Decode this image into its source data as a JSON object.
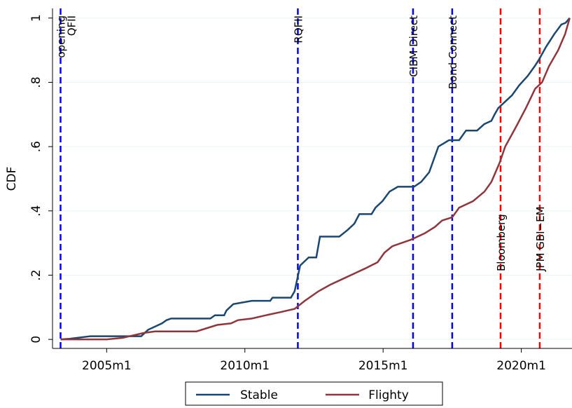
{
  "chart_data": {
    "type": "line",
    "y_label": "CDF",
    "xlim": [
      516.5,
      742
    ],
    "ylim": [
      -0.028,
      1.03
    ],
    "xticks": [
      {
        "value": 540,
        "label": "2005m1"
      },
      {
        "value": 600,
        "label": "2010m1"
      },
      {
        "value": 660,
        "label": "2015m1"
      },
      {
        "value": 720,
        "label": "2020m1"
      }
    ],
    "yticks": [
      0,
      {
        "value": 0.2,
        "label": ".2"
      },
      {
        "value": 0.4,
        "label": ".4"
      },
      {
        "value": 0.6,
        "label": ".6"
      },
      {
        "value": 0.8,
        "label": ".8"
      },
      1
    ],
    "grid": true,
    "legend": "bottom",
    "series": [
      {
        "name": "Stable",
        "color": "#1a476f",
        "x": [
          520,
          524,
          533,
          555,
          558,
          561,
          564,
          566,
          568,
          585,
          587,
          591,
          592,
          595,
          603,
          611,
          612,
          620,
          621.6,
          624,
          627.7,
          631,
          632.6,
          641,
          644.5,
          647.5,
          649.7,
          655,
          656.7,
          659.7,
          662.8,
          666.4,
          673.4,
          676.5,
          680,
          684,
          688.6,
          693,
          696,
          700.8,
          703.9,
          707,
          708.4,
          710,
          713,
          716,
          719,
          722.8,
          725.8,
          727.6,
          730.7,
          734.3,
          737.4,
          739.2,
          741
        ],
        "values": [
          0,
          0.002,
          0.01,
          0.01,
          0.03,
          0.04,
          0.05,
          0.06,
          0.065,
          0.065,
          0.075,
          0.075,
          0.09,
          0.11,
          0.12,
          0.12,
          0.13,
          0.13,
          0.15,
          0.23,
          0.255,
          0.255,
          0.32,
          0.32,
          0.34,
          0.36,
          0.39,
          0.39,
          0.41,
          0.43,
          0.46,
          0.475,
          0.475,
          0.49,
          0.52,
          0.6,
          0.62,
          0.62,
          0.65,
          0.65,
          0.67,
          0.68,
          0.7,
          0.72,
          0.74,
          0.76,
          0.79,
          0.82,
          0.85,
          0.87,
          0.91,
          0.95,
          0.98,
          0.985,
          1
        ]
      },
      {
        "name": "Flighty",
        "color": "#90353b",
        "x": [
          520,
          540,
          547,
          550,
          556,
          561,
          579,
          583.5,
          588,
          594,
          597,
          603,
          609,
          615.5,
          621.6,
          626,
          632,
          637,
          643,
          646,
          652,
          657.6,
          660.6,
          664,
          672,
          678,
          682.5,
          685.6,
          690,
          693,
          699,
          704,
          707,
          710.6,
          713,
          717.6,
          722,
          726,
          729,
          732,
          736,
          739,
          741
        ],
        "values": [
          0,
          0,
          0.005,
          0.01,
          0.02,
          0.025,
          0.025,
          0.035,
          0.045,
          0.05,
          0.06,
          0.065,
          0.075,
          0.085,
          0.095,
          0.12,
          0.15,
          0.17,
          0.19,
          0.2,
          0.22,
          0.24,
          0.27,
          0.29,
          0.31,
          0.33,
          0.35,
          0.37,
          0.38,
          0.41,
          0.43,
          0.46,
          0.49,
          0.55,
          0.6,
          0.66,
          0.72,
          0.78,
          0.8,
          0.85,
          0.9,
          0.95,
          1
        ]
      }
    ],
    "events": [
      {
        "x": 520,
        "lines": [
          "opening",
          "QFII"
        ],
        "color": "#0000ff",
        "label_position": "top"
      },
      {
        "x": 623,
        "lines": [
          "RQFII"
        ],
        "color": "#0000ff",
        "label_position": "top"
      },
      {
        "x": 673,
        "lines": [
          "CIBM Direct"
        ],
        "color": "#0000ff",
        "label_position": "top"
      },
      {
        "x": 690,
        "lines": [
          "Bond Connect"
        ],
        "color": "#0000ff",
        "label_position": "top"
      },
      {
        "x": 711,
        "lines": [
          "Bloomberg"
        ],
        "color": "#ff0000",
        "label_position": "bottom"
      },
      {
        "x": 728,
        "lines": [
          "JPM GBI−EM"
        ],
        "color": "#ff0000",
        "label_position": "bottom"
      }
    ]
  }
}
